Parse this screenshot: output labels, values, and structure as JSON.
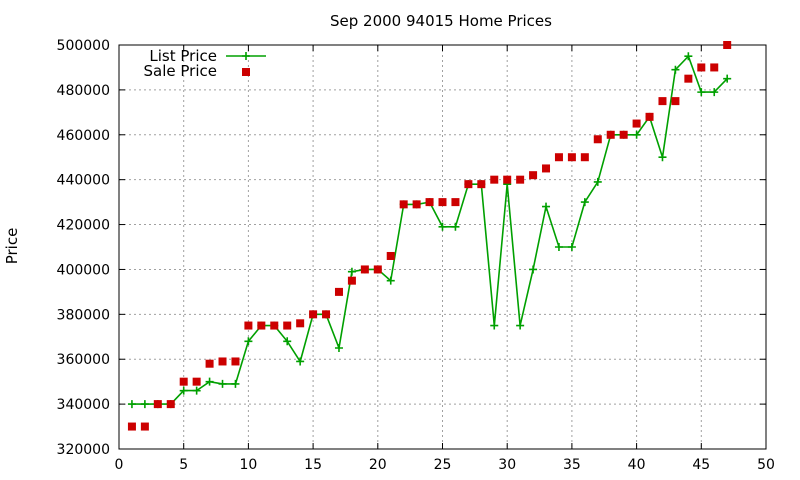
{
  "chart_data": {
    "type": "line",
    "title": "Sep 2000 94015 Home Prices",
    "xlabel": "",
    "ylabel": "Price",
    "xlim": [
      0,
      50
    ],
    "ylim": [
      320000,
      500000
    ],
    "xticks": [
      0,
      5,
      10,
      15,
      20,
      25,
      30,
      35,
      40,
      45,
      50
    ],
    "yticks": [
      320000,
      340000,
      360000,
      380000,
      400000,
      420000,
      440000,
      460000,
      480000,
      500000
    ],
    "xtick_labels": [
      "0",
      "5",
      "10",
      "15",
      "20",
      "25",
      "30",
      "35",
      "40",
      "45",
      "50"
    ],
    "ytick_labels": [
      "320000",
      "340000",
      "360000",
      "380000",
      "400000",
      "420000",
      "440000",
      "460000",
      "480000",
      "500000"
    ],
    "grid": true,
    "legend_position": "top-left",
    "series": [
      {
        "name": "List Price",
        "style": "line-plus",
        "color": "#00a000",
        "x": [
          1,
          2,
          3,
          4,
          5,
          6,
          7,
          8,
          9,
          10,
          11,
          12,
          13,
          14,
          15,
          16,
          17,
          18,
          19,
          20,
          21,
          22,
          23,
          24,
          25,
          26,
          27,
          28,
          29,
          30,
          31,
          32,
          33,
          34,
          35,
          36,
          37,
          38,
          39,
          40,
          41,
          42,
          43,
          44,
          45,
          46,
          47
        ],
        "y": [
          340000,
          340000,
          340000,
          340000,
          346000,
          346000,
          350000,
          349000,
          349000,
          368000,
          375000,
          375000,
          368000,
          359000,
          380000,
          380000,
          365000,
          399000,
          400000,
          400000,
          395000,
          429000,
          429000,
          430000,
          419000,
          419000,
          438000,
          438000,
          375000,
          438000,
          375000,
          400000,
          428000,
          410000,
          410000,
          430000,
          439000,
          460000,
          460000,
          460000,
          468000,
          450000,
          489000,
          495000,
          479000,
          479000,
          485000
        ]
      },
      {
        "name": "Sale Price",
        "style": "square-points",
        "color": "#cc0000",
        "x": [
          1,
          2,
          3,
          4,
          5,
          6,
          7,
          8,
          9,
          10,
          11,
          12,
          13,
          14,
          15,
          16,
          17,
          18,
          19,
          20,
          21,
          22,
          23,
          24,
          25,
          26,
          27,
          28,
          29,
          30,
          31,
          32,
          33,
          34,
          35,
          36,
          37,
          38,
          39,
          40,
          41,
          42,
          43,
          44,
          45,
          46,
          47
        ],
        "y": [
          330000,
          330000,
          340000,
          340000,
          350000,
          350000,
          358000,
          359000,
          359000,
          375000,
          375000,
          375000,
          375000,
          376000,
          380000,
          380000,
          390000,
          395000,
          400000,
          400000,
          406000,
          429000,
          429000,
          430000,
          430000,
          430000,
          438000,
          438000,
          440000,
          440000,
          440000,
          442000,
          445000,
          450000,
          450000,
          450000,
          458000,
          460000,
          460000,
          465000,
          468000,
          475000,
          475000,
          485000,
          490000,
          490000,
          500000
        ]
      }
    ]
  }
}
